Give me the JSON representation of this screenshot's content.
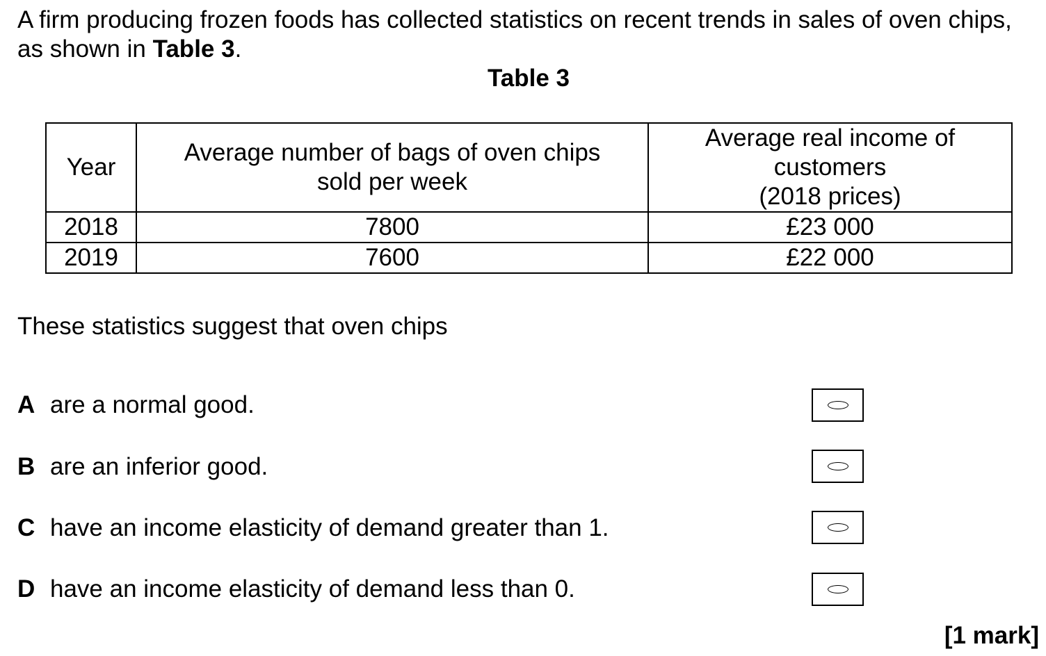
{
  "intro": {
    "text_before": "A firm producing frozen foods has collected statistics on recent trends in sales of oven chips, as shown in ",
    "table_ref": "Table 3",
    "text_after": "."
  },
  "table": {
    "caption": "Table 3",
    "headers": {
      "year": "Year",
      "bags_line1": "Average number of bags of oven chips",
      "bags_line2": "sold per week",
      "income_line1": "Average real income of",
      "income_line2": "customers",
      "income_line3": "(2018 prices)"
    },
    "rows": [
      {
        "year": "2018",
        "bags": "7800",
        "income": "£23 000"
      },
      {
        "year": "2019",
        "bags": "7600",
        "income": "£22 000"
      }
    ]
  },
  "prompt": "These statistics suggest that oven chips",
  "options": [
    {
      "letter": "A",
      "text": "are a normal good."
    },
    {
      "letter": "B",
      "text": "are an inferior good."
    },
    {
      "letter": "C",
      "text": "have an income elasticity of demand greater than 1."
    },
    {
      "letter": "D",
      "text": "have an income elasticity of demand less than 0."
    }
  ],
  "marks": "[1 mark]"
}
